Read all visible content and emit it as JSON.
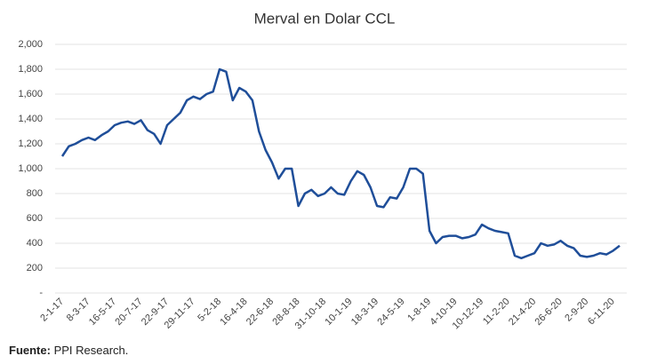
{
  "chart_data": {
    "type": "line",
    "title": "Merval en Dolar CCL",
    "source_label": "Fuente:",
    "source": "PPI Research.",
    "categories": [
      "2-1-17",
      null,
      null,
      null,
      "8-3-17",
      null,
      null,
      null,
      "16-5-17",
      null,
      null,
      null,
      "20-7-17",
      null,
      null,
      null,
      "22-9-17",
      null,
      null,
      null,
      "29-11-17",
      null,
      null,
      null,
      "5-2-18",
      null,
      null,
      null,
      "16-4-18",
      null,
      null,
      null,
      "22-6-18",
      null,
      null,
      null,
      "28-8-18",
      null,
      null,
      null,
      "31-10-18",
      null,
      null,
      null,
      "10-1-19",
      null,
      null,
      null,
      "18-3-19",
      null,
      null,
      null,
      "24-5-19",
      null,
      null,
      null,
      "1-8-19",
      null,
      null,
      null,
      "4-10-19",
      null,
      null,
      null,
      "10-12-19",
      null,
      null,
      null,
      "11-2-20",
      null,
      null,
      null,
      "21-4-20",
      null,
      null,
      null,
      "26-6-20",
      null,
      null,
      null,
      "2-9-20",
      null,
      null,
      null,
      "6-11-20",
      null
    ],
    "series": [
      {
        "name": "Merval en Dolar CCL",
        "color": "#1f4e99",
        "values": [
          1100,
          1180,
          1200,
          1230,
          1250,
          1230,
          1270,
          1300,
          1350,
          1370,
          1380,
          1360,
          1390,
          1310,
          1280,
          1200,
          1350,
          1400,
          1450,
          1550,
          1580,
          1560,
          1600,
          1620,
          1800,
          1780,
          1550,
          1650,
          1620,
          1550,
          1300,
          1150,
          1050,
          920,
          1000,
          1000,
          700,
          800,
          830,
          780,
          800,
          850,
          800,
          790,
          900,
          980,
          950,
          850,
          700,
          690,
          770,
          760,
          850,
          1000,
          1000,
          960,
          500,
          400,
          450,
          460,
          460,
          440,
          450,
          470,
          550,
          520,
          500,
          490,
          480,
          300,
          280,
          300,
          320,
          400,
          380,
          390,
          420,
          380,
          360,
          300,
          290,
          300,
          320,
          310,
          340,
          380
        ]
      }
    ],
    "ylim": [
      0,
      2000
    ],
    "yticks": [
      {
        "value": 0,
        "label": "-"
      },
      200,
      400,
      600,
      800,
      {
        "value": 1000,
        "label": "1,000"
      },
      {
        "value": 1200,
        "label": "1,200"
      },
      {
        "value": 1400,
        "label": "1,400"
      },
      {
        "value": 1600,
        "label": "1,600"
      },
      {
        "value": 1800,
        "label": "1,800"
      },
      {
        "value": 2000,
        "label": "2,000"
      }
    ],
    "grid": true
  }
}
